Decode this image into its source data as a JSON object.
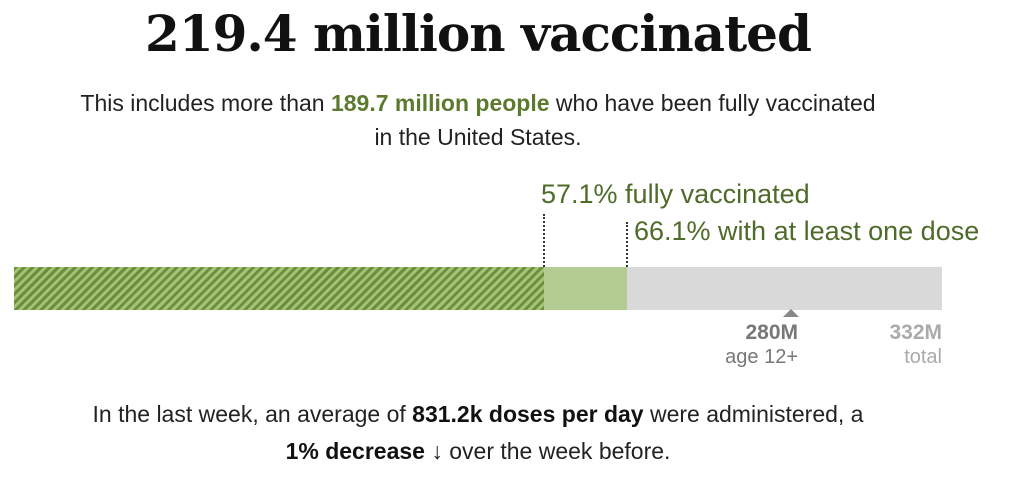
{
  "headline": "219.4 million vaccinated",
  "subhead": {
    "before": "This includes more than ",
    "highlight": "189.7 million people",
    "after": " who have been fully vaccinated",
    "line2": "in the United States."
  },
  "colors": {
    "fully": "#6d8f39",
    "one_dose": "#b2cc92",
    "remaining": "#d9d9d9",
    "label_green": "#4f6b2a"
  },
  "chart_data": {
    "type": "bar",
    "orientation": "horizontal",
    "stacked": true,
    "population_unit": "M",
    "xlim": [
      0,
      332
    ],
    "series": [
      {
        "name": "fully vaccinated",
        "percent": 57.1,
        "label": "57.1% fully vaccinated"
      },
      {
        "name": "with at least one dose",
        "percent": 66.1,
        "label": "66.1% with at least one dose"
      }
    ],
    "ticks": [
      {
        "value": 280,
        "label": "280M",
        "caption": "age 12+"
      },
      {
        "value": 332,
        "label": "332M",
        "caption": "total"
      }
    ]
  },
  "footer": {
    "before": "In the last week, an average of ",
    "bold1": "831.2k doses per day",
    "middle": " were administered, a",
    "bold2": "1% decrease",
    "arrow": "↓",
    "after": " over the week before."
  }
}
